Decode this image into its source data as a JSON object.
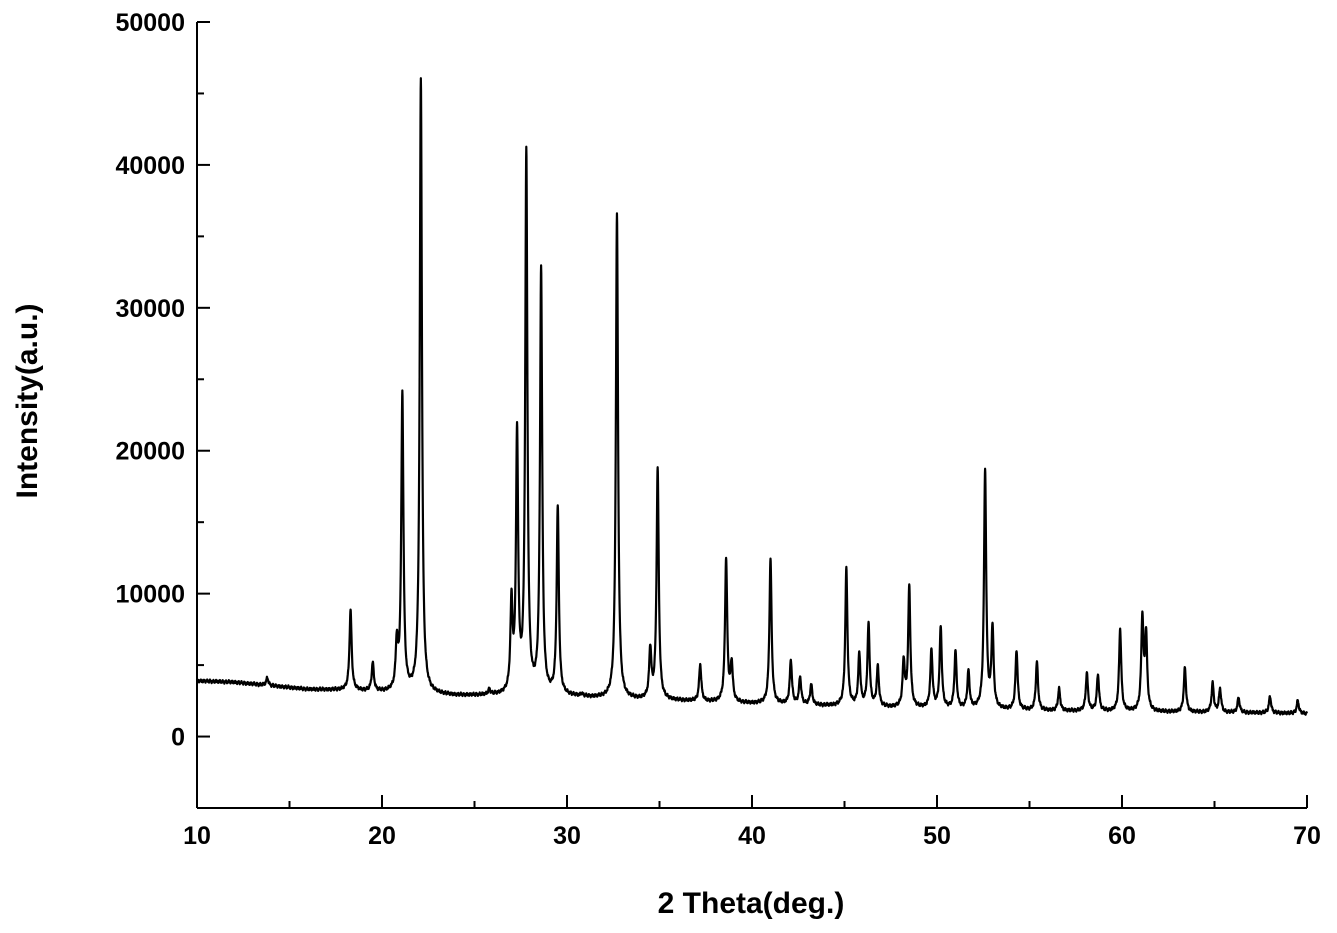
{
  "chart_data": {
    "type": "line",
    "title": "",
    "xlabel": "2 Theta(deg.)",
    "ylabel": "Intensity(a.u.)",
    "xlim": [
      10,
      70
    ],
    "ylim": [
      -5000,
      50000
    ],
    "x_ticks": [
      "10",
      "20",
      "30",
      "40",
      "50",
      "60",
      "70"
    ],
    "y_ticks": [
      "0",
      "10000",
      "20000",
      "30000",
      "40000",
      "50000"
    ],
    "grid": false,
    "legend": "none",
    "line_color": "#000000",
    "baseline": [
      [
        10,
        3900
      ],
      [
        12,
        3800
      ],
      [
        14,
        3550
      ],
      [
        16,
        3300
      ],
      [
        18,
        3250
      ],
      [
        20,
        3100
      ],
      [
        22,
        3000
      ],
      [
        24,
        2850
      ],
      [
        26,
        2850
      ],
      [
        28,
        2800
      ],
      [
        30,
        2800
      ],
      [
        32,
        2650
      ],
      [
        34,
        2550
      ],
      [
        36,
        2500
      ],
      [
        38,
        2400
      ],
      [
        40,
        2300
      ],
      [
        44,
        2150
      ],
      [
        48,
        2000
      ],
      [
        52,
        1900
      ],
      [
        56,
        1800
      ],
      [
        60,
        1750
      ],
      [
        64,
        1700
      ],
      [
        68,
        1650
      ],
      [
        70,
        1600
      ]
    ],
    "peaks": [
      {
        "x": 13.8,
        "y": 4100
      },
      {
        "x": 18.3,
        "y": 8800
      },
      {
        "x": 19.5,
        "y": 5100
      },
      {
        "x": 20.8,
        "y": 6300
      },
      {
        "x": 21.1,
        "y": 23800
      },
      {
        "x": 22.1,
        "y": 46000
      },
      {
        "x": 25.8,
        "y": 3200
      },
      {
        "x": 27.0,
        "y": 9000
      },
      {
        "x": 27.3,
        "y": 20800
      },
      {
        "x": 27.8,
        "y": 40600
      },
      {
        "x": 28.6,
        "y": 32600
      },
      {
        "x": 29.5,
        "y": 15900
      },
      {
        "x": 30.8,
        "y": 2900
      },
      {
        "x": 32.7,
        "y": 36500
      },
      {
        "x": 34.5,
        "y": 6000
      },
      {
        "x": 34.9,
        "y": 18700
      },
      {
        "x": 37.2,
        "y": 5000
      },
      {
        "x": 38.6,
        "y": 12400
      },
      {
        "x": 38.9,
        "y": 5000
      },
      {
        "x": 41.0,
        "y": 12400
      },
      {
        "x": 42.1,
        "y": 5300
      },
      {
        "x": 42.6,
        "y": 4100
      },
      {
        "x": 43.2,
        "y": 3600
      },
      {
        "x": 45.1,
        "y": 11700
      },
      {
        "x": 45.8,
        "y": 5700
      },
      {
        "x": 46.3,
        "y": 7800
      },
      {
        "x": 46.8,
        "y": 4800
      },
      {
        "x": 48.2,
        "y": 5200
      },
      {
        "x": 48.5,
        "y": 10400
      },
      {
        "x": 49.7,
        "y": 6000
      },
      {
        "x": 50.2,
        "y": 7600
      },
      {
        "x": 51.0,
        "y": 5900
      },
      {
        "x": 51.7,
        "y": 4500
      },
      {
        "x": 52.6,
        "y": 18600
      },
      {
        "x": 53.0,
        "y": 7500
      },
      {
        "x": 54.3,
        "y": 6000
      },
      {
        "x": 55.4,
        "y": 5200
      },
      {
        "x": 56.6,
        "y": 3300
      },
      {
        "x": 58.1,
        "y": 4400
      },
      {
        "x": 58.7,
        "y": 4300
      },
      {
        "x": 59.9,
        "y": 7500
      },
      {
        "x": 61.1,
        "y": 8200
      },
      {
        "x": 61.3,
        "y": 7000
      },
      {
        "x": 63.4,
        "y": 4800
      },
      {
        "x": 64.9,
        "y": 3700
      },
      {
        "x": 65.3,
        "y": 3300
      },
      {
        "x": 66.3,
        "y": 2700
      },
      {
        "x": 68.0,
        "y": 2800
      },
      {
        "x": 69.5,
        "y": 2500
      }
    ]
  }
}
